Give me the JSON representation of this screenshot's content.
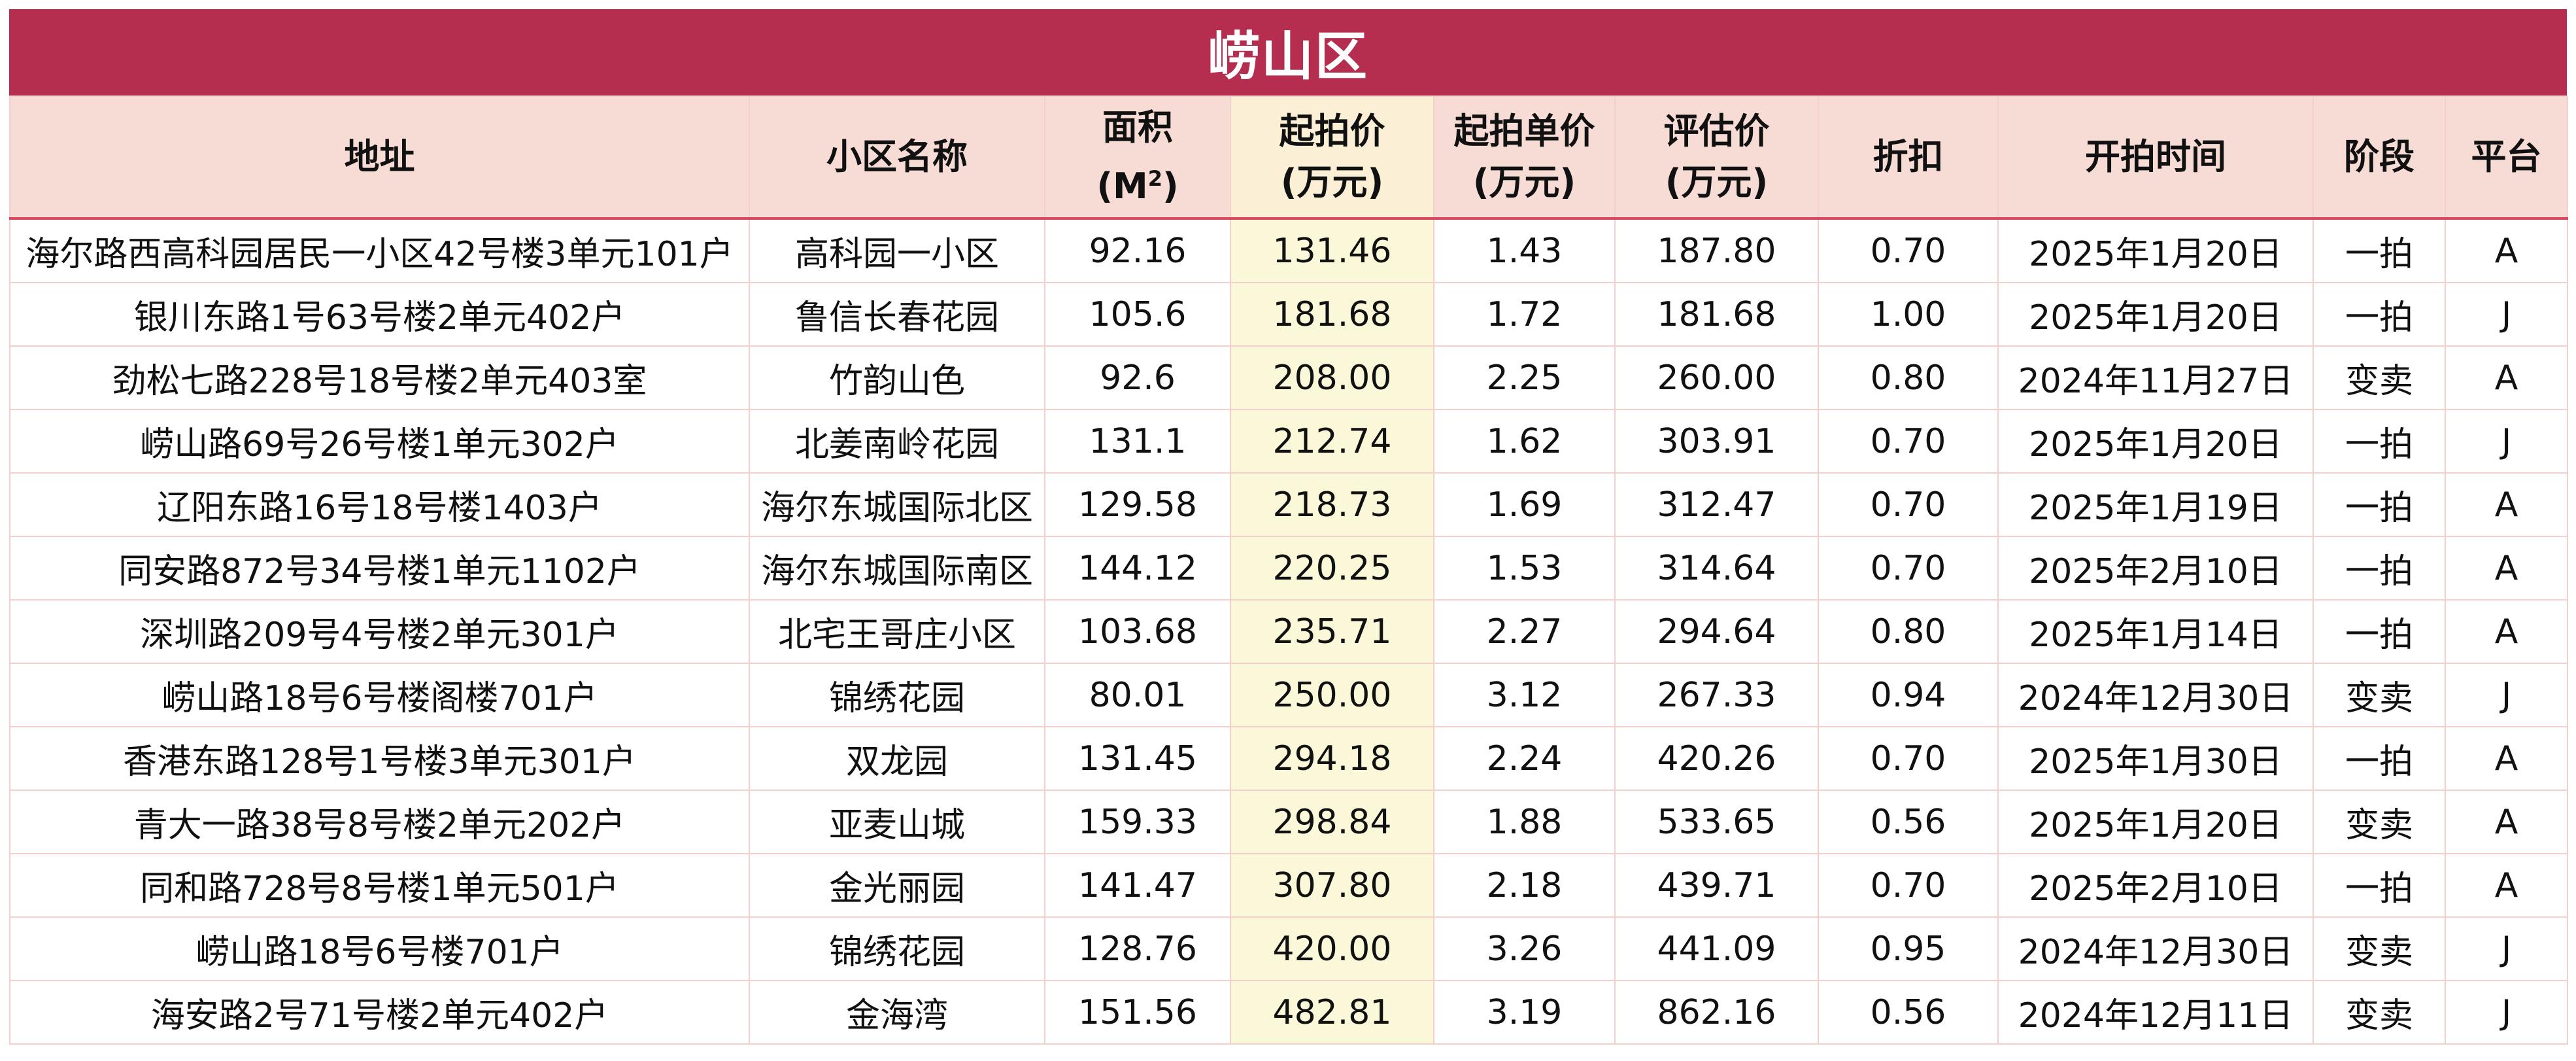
{
  "title": "崂山区",
  "headers": {
    "address": "地址",
    "community": "小区名称",
    "area_line1": "面积",
    "area_line2": "(M",
    "area_sup": "2",
    "area_close": ")",
    "start_price_line1": "起拍价",
    "start_price_line2": "(万元)",
    "unit_price_line1": "起拍单价",
    "unit_price_line2": "(万元)",
    "appraisal_line1": "评估价",
    "appraisal_line2": "(万元)",
    "discount": "折扣",
    "start_time": "开拍时间",
    "stage": "阶段",
    "platform": "平台"
  },
  "rows": [
    [
      "海尔路西高科园居民一小区42号楼3单元101户",
      "高科园一小区",
      "92.16",
      "131.46",
      "1.43",
      "187.80",
      "0.70",
      "2025年1月20日",
      "一拍",
      "A"
    ],
    [
      "银川东路1号63号楼2单元402户",
      "鲁信长春花园",
      "105.6",
      "181.68",
      "1.72",
      "181.68",
      "1.00",
      "2025年1月20日",
      "一拍",
      "J"
    ],
    [
      "劲松七路228号18号楼2单元403室",
      "竹韵山色",
      "92.6",
      "208.00",
      "2.25",
      "260.00",
      "0.80",
      "2024年11月27日",
      "变卖",
      "A"
    ],
    [
      "崂山路69号26号楼1单元302户",
      "北姜南岭花园",
      "131.1",
      "212.74",
      "1.62",
      "303.91",
      "0.70",
      "2025年1月20日",
      "一拍",
      "J"
    ],
    [
      "辽阳东路16号18号楼1403户",
      "海尔东城国际北区",
      "129.58",
      "218.73",
      "1.69",
      "312.47",
      "0.70",
      "2025年1月19日",
      "一拍",
      "A"
    ],
    [
      "同安路872号34号楼1单元1102户",
      "海尔东城国际南区",
      "144.12",
      "220.25",
      "1.53",
      "314.64",
      "0.70",
      "2025年2月10日",
      "一拍",
      "A"
    ],
    [
      "深圳路209号4号楼2单元301户",
      "北宅王哥庄小区",
      "103.68",
      "235.71",
      "2.27",
      "294.64",
      "0.80",
      "2025年1月14日",
      "一拍",
      "A"
    ],
    [
      "崂山路18号6号楼阁楼701户",
      "锦绣花园",
      "80.01",
      "250.00",
      "3.12",
      "267.33",
      "0.94",
      "2024年12月30日",
      "变卖",
      "J"
    ],
    [
      "香港东路128号1号楼3单元301户",
      "双龙园",
      "131.45",
      "294.18",
      "2.24",
      "420.26",
      "0.70",
      "2025年1月30日",
      "一拍",
      "A"
    ],
    [
      "青大一路38号8号楼2单元202户",
      "亚麦山城",
      "159.33",
      "298.84",
      "1.88",
      "533.65",
      "0.56",
      "2025年1月20日",
      "变卖",
      "A"
    ],
    [
      "同和路728号8号楼1单元501户",
      "金光丽园",
      "141.47",
      "307.80",
      "2.18",
      "439.71",
      "0.70",
      "2025年2月10日",
      "一拍",
      "A"
    ],
    [
      "崂山路18号6号楼701户",
      "锦绣花园",
      "128.76",
      "420.00",
      "3.26",
      "441.09",
      "0.95",
      "2024年12月30日",
      "变卖",
      "J"
    ],
    [
      "海安路2号71号楼2单元402户",
      "金海湾",
      "151.56",
      "482.81",
      "3.19",
      "862.16",
      "0.56",
      "2024年12月11日",
      "变卖",
      "J"
    ]
  ],
  "colors": {
    "title_bg": "#b52d4f",
    "header_bg": "#f7dcd5",
    "highlight_column": "#fbf8da",
    "grid": "#f3d0cc"
  }
}
